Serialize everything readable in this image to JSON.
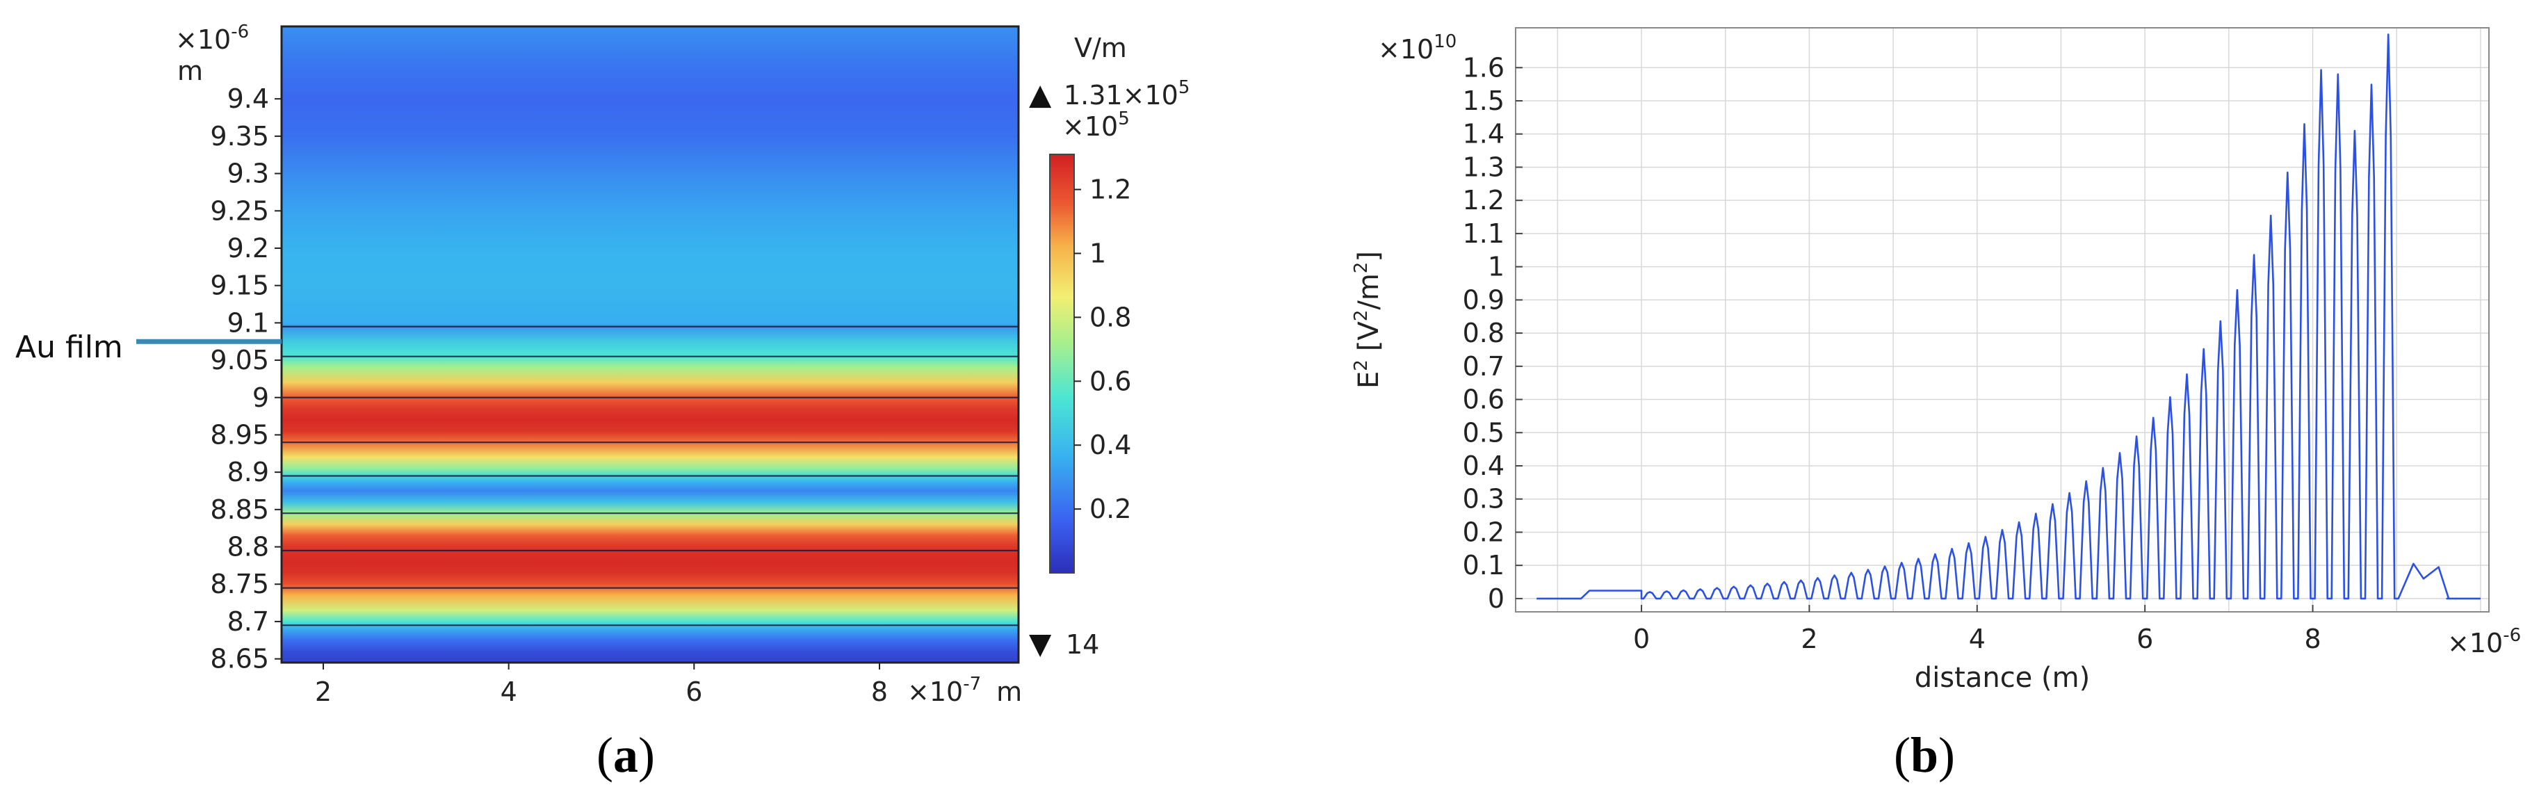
{
  "chart_data": [
    {
      "type": "heatmap",
      "panel_label": {
        "open": "(",
        "letter": "a",
        "close": ")"
      },
      "x_ticks": [
        "2",
        "4",
        "6",
        "8"
      ],
      "x_tick_values": [
        2,
        4,
        6,
        8
      ],
      "x_range": [
        1.55,
        9.5
      ],
      "x_exponent_label": "×10",
      "x_exponent": "-7",
      "x_unit": "m",
      "y_exponent_label": "×10",
      "y_exponent": "-6",
      "y_unit": "m",
      "y_ticks": [
        "9.4",
        "9.35",
        "9.3",
        "9.25",
        "9.2",
        "9.15",
        "9.1",
        "9.05",
        "9",
        "8.95",
        "8.9",
        "8.85",
        "8.8",
        "8.75",
        "8.7",
        "8.65"
      ],
      "y_tick_values": [
        9.4,
        9.35,
        9.3,
        9.25,
        9.2,
        9.15,
        9.1,
        9.05,
        9.0,
        8.95,
        8.9,
        8.85,
        8.8,
        8.75,
        8.7,
        8.65
      ],
      "y_range": [
        8.645,
        9.497
      ],
      "annotation": "Au film",
      "annotation_y": 9.075,
      "boundary_lines_y": [
        9.095,
        9.055,
        9.0,
        8.94,
        8.895,
        8.845,
        8.795,
        8.745,
        8.695
      ],
      "colorbar": {
        "unit": "V/m",
        "max_label": "1.31×10",
        "max_exponent": "5",
        "scale_label": "×10",
        "scale_exponent": "5",
        "ticks": [
          "1.2",
          "1",
          "0.8",
          "0.6",
          "0.4",
          "0.2"
        ],
        "tick_values": [
          1.2,
          1.0,
          0.8,
          0.6,
          0.4,
          0.2
        ],
        "range": [
          0.00014,
          1.31
        ],
        "min_label": "14",
        "max_marker": "▲",
        "min_marker": "▼"
      },
      "field_profile_y": [
        9.497,
        9.45,
        9.4,
        9.35,
        9.3,
        9.25,
        9.2,
        9.15,
        9.1,
        9.095,
        9.075,
        9.055,
        9.04,
        9.02,
        9.0,
        8.985,
        8.97,
        8.955,
        8.94,
        8.92,
        8.905,
        8.895,
        8.885,
        8.875,
        8.86,
        8.845,
        8.83,
        8.815,
        8.8,
        8.78,
        8.765,
        8.75,
        8.735,
        8.715,
        8.7,
        8.69,
        8.675,
        8.66,
        8.645
      ],
      "field_profile_value": [
        0.28,
        0.22,
        0.18,
        0.2,
        0.27,
        0.33,
        0.37,
        0.38,
        0.36,
        0.3,
        0.45,
        0.55,
        0.72,
        0.95,
        1.15,
        1.24,
        1.28,
        1.25,
        1.12,
        0.9,
        0.68,
        0.5,
        0.35,
        0.25,
        0.42,
        0.7,
        0.95,
        1.15,
        1.25,
        1.28,
        1.26,
        1.18,
        1.02,
        0.8,
        0.55,
        0.35,
        0.2,
        0.1,
        0.06
      ]
    },
    {
      "type": "line",
      "panel_label": {
        "open": "(",
        "letter": "b",
        "close": ")"
      },
      "xlabel": "distance (m)",
      "ylabel_base": "E",
      "ylabel_sup": "2",
      "ylabel_unit": "[V",
      "ylabel_unit_sup": "2",
      "ylabel_unit_mid": "/m",
      "ylabel_unit_sup2": "2",
      "ylabel_close": "]",
      "y_exponent_label": "×10",
      "y_exponent": "10",
      "x_exponent_label": "×10",
      "x_exponent": "-6",
      "x_ticks": [
        "0",
        "2",
        "4",
        "6",
        "8"
      ],
      "x_tick_values": [
        0,
        2,
        4,
        6,
        8
      ],
      "y_ticks": [
        "0",
        "0.1",
        "0.2",
        "0.3",
        "0.4",
        "0.5",
        "0.6",
        "0.7",
        "0.8",
        "0.9",
        "1",
        "1.1",
        "1.2",
        "1.3",
        "1.4",
        "1.5",
        "1.6"
      ],
      "y_tick_values": [
        0,
        0.1,
        0.2,
        0.3,
        0.4,
        0.5,
        0.6,
        0.7,
        0.8,
        0.9,
        1.0,
        1.1,
        1.2,
        1.3,
        1.4,
        1.5,
        1.6
      ],
      "xlim": [
        -1.5,
        10.1
      ],
      "ylim": [
        -0.04,
        1.72
      ],
      "grid": true,
      "series_color": "#2b50e6",
      "series": [
        {
          "name": "E^2",
          "description": "oscillating field; peaks every 0.2 µm from 0.1 to 8.9 µm, envelope rising exponentially",
          "baseline_before": [
            [
              -1.25,
              0.0
            ],
            [
              -0.72,
              0.0
            ],
            [
              -0.62,
              0.024
            ],
            [
              0.0,
              0.024
            ]
          ],
          "peak_positions": [
            0.1,
            0.3,
            0.5,
            0.7,
            0.9,
            1.1,
            1.3,
            1.5,
            1.7,
            1.9,
            2.1,
            2.3,
            2.5,
            2.7,
            2.9,
            3.1,
            3.3,
            3.5,
            3.7,
            3.9,
            4.1,
            4.3,
            4.5,
            4.7,
            4.9,
            5.1,
            5.3,
            5.5,
            5.7,
            5.9,
            6.1,
            6.3,
            6.5,
            6.7,
            6.9,
            7.1,
            7.3,
            7.5,
            7.7,
            7.9,
            8.1,
            8.3,
            8.5,
            8.7,
            8.9
          ],
          "peak_values": [
            0.02,
            0.022,
            0.025,
            0.028,
            0.032,
            0.036,
            0.04,
            0.045,
            0.05,
            0.055,
            0.062,
            0.07,
            0.078,
            0.087,
            0.097,
            0.108,
            0.12,
            0.134,
            0.15,
            0.167,
            0.186,
            0.207,
            0.23,
            0.256,
            0.285,
            0.318,
            0.354,
            0.394,
            0.439,
            0.489,
            0.545,
            0.607,
            0.676,
            0.752,
            0.836,
            0.93,
            1.036,
            1.154,
            1.284,
            1.43,
            1.593,
            1.58,
            1.41,
            1.549,
            1.7
          ],
          "tail_after": [
            [
              9.02,
              0.0
            ],
            [
              9.2,
              0.105
            ],
            [
              9.32,
              0.06
            ],
            [
              9.5,
              0.095
            ],
            [
              9.62,
              0.0
            ],
            [
              9.6,
              0.0
            ],
            [
              10.0,
              0.0
            ]
          ]
        }
      ]
    }
  ]
}
